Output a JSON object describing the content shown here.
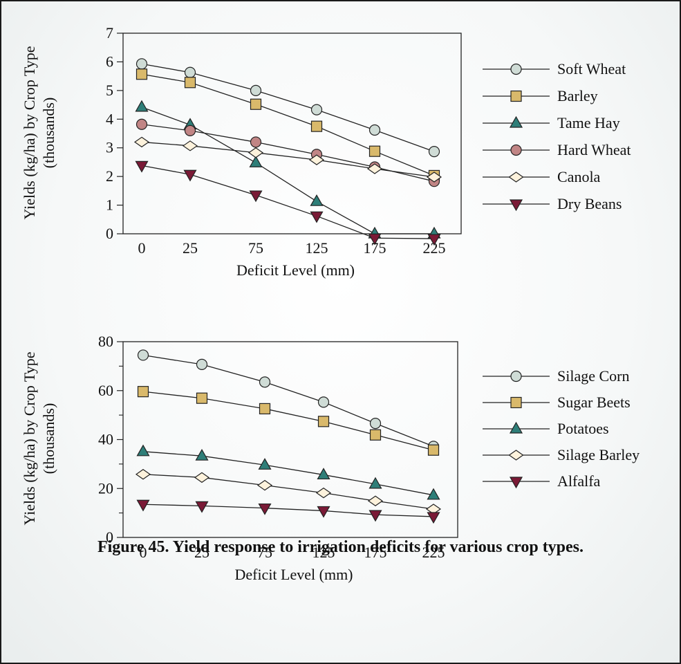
{
  "figure": {
    "caption": "Figure 45. Yield response to irrigation deficits for various crop types."
  },
  "colors": {
    "soft_wheat": "#cfdcd6",
    "barley": "#d9b96b",
    "tame_hay": "#2e7e78",
    "hard_wheat": "#c18585",
    "canola": "#fdf2dc",
    "dry_beans": "#7a1a36"
  },
  "chart_data": [
    {
      "type": "line",
      "title": "",
      "xlabel": "Deficit Level (mm)",
      "ylabel": "Yields (kg/ha) by Crop Type",
      "ylabel2": "(thousands)",
      "categories": [
        "0",
        "25",
        "75",
        "125",
        "175",
        "225"
      ],
      "ylim": [
        0,
        7
      ],
      "yticks": [
        0,
        1,
        2,
        3,
        4,
        5,
        6,
        7
      ],
      "legend": "right",
      "series": [
        {
          "name": "Soft Wheat",
          "marker": "circle",
          "color": "#cfdcd6",
          "values": [
            5.93,
            5.63,
            5.0,
            4.33,
            3.62,
            2.87
          ]
        },
        {
          "name": "Barley",
          "marker": "square",
          "color": "#d9b96b",
          "values": [
            5.57,
            5.28,
            4.52,
            3.75,
            2.88,
            2.03
          ]
        },
        {
          "name": "Tame Hay",
          "marker": "triangle-up",
          "color": "#2e7e78",
          "values": [
            4.42,
            3.8,
            2.48,
            1.13,
            0.0,
            0.0
          ]
        },
        {
          "name": "Hard Wheat",
          "marker": "circle",
          "color": "#c18585",
          "values": [
            3.82,
            3.6,
            3.2,
            2.77,
            2.33,
            1.83
          ]
        },
        {
          "name": "Canola",
          "marker": "diamond",
          "color": "#fdf2dc",
          "values": [
            3.2,
            3.07,
            2.83,
            2.58,
            2.27,
            1.98
          ]
        },
        {
          "name": "Dry Beans",
          "marker": "triangle-down",
          "color": "#7a1a36",
          "values": [
            2.38,
            2.07,
            1.35,
            0.62,
            -0.15,
            -0.17
          ]
        }
      ]
    },
    {
      "type": "line",
      "title": "",
      "xlabel": "Deficit Level (mm)",
      "ylabel": "Yields (kg/ha) by Crop Type",
      "ylabel2": "(thousands)",
      "categories": [
        "0",
        "25",
        "75",
        "125",
        "175",
        "225"
      ],
      "ylim": [
        0,
        80
      ],
      "yticks": [
        0,
        20,
        40,
        60,
        80
      ],
      "yticks_minor": [
        10,
        30,
        50,
        70
      ],
      "legend": "right",
      "series": [
        {
          "name": "Silage Corn",
          "marker": "circle",
          "color": "#cfdcd6",
          "values": [
            74.5,
            70.7,
            63.5,
            55.3,
            46.6,
            37.2
          ]
        },
        {
          "name": "Sugar Beets",
          "marker": "square",
          "color": "#d9b96b",
          "values": [
            59.6,
            56.9,
            52.6,
            47.4,
            41.9,
            35.7
          ]
        },
        {
          "name": "Potatoes",
          "marker": "triangle-up",
          "color": "#2e7e78",
          "values": [
            35.1,
            33.3,
            29.6,
            25.6,
            21.8,
            17.3
          ]
        },
        {
          "name": "Silage Barley",
          "marker": "diamond",
          "color": "#fdf2dc",
          "values": [
            25.8,
            24.5,
            21.3,
            18.2,
            14.9,
            11.6
          ]
        },
        {
          "name": "Alfalfa",
          "marker": "triangle-down",
          "color": "#7a1a36",
          "values": [
            13.5,
            12.9,
            12.0,
            10.9,
            9.3,
            8.5
          ]
        }
      ]
    }
  ]
}
